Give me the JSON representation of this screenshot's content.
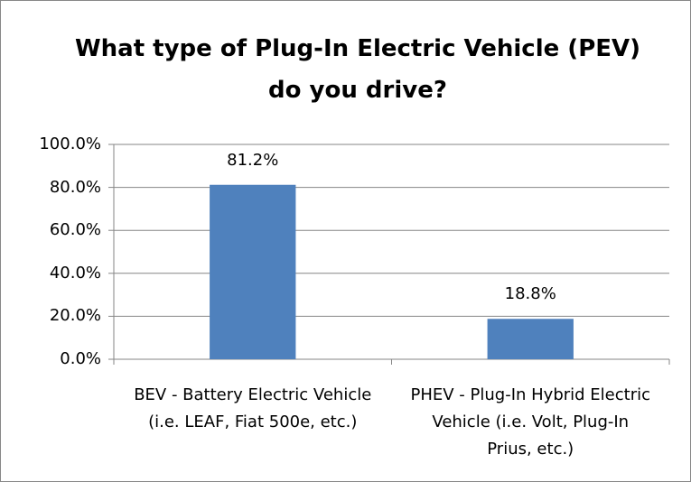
{
  "chart_data": {
    "type": "bar",
    "title": "What type of Plug-In Electric Vehicle (PEV) do you drive?",
    "categories": [
      "BEV - Battery Electric Vehicle (i.e. LEAF, Fiat 500e, etc.)",
      "PHEV - Plug-In Hybrid Electric Vehicle (i.e. Volt, Plug-In Prius, etc.)"
    ],
    "values": [
      81.2,
      18.8
    ],
    "value_labels": [
      "81.2%",
      "18.8%"
    ],
    "color": "#4f81bd",
    "ylim": [
      0,
      100
    ],
    "yticks": [
      {
        "value": 0,
        "label": "0.0%"
      },
      {
        "value": 20,
        "label": "20.0%"
      },
      {
        "value": 40,
        "label": "40.0%"
      },
      {
        "value": 60,
        "label": "60.0%"
      },
      {
        "value": 80,
        "label": "80.0%"
      },
      {
        "value": 100,
        "label": "100.0%"
      }
    ],
    "grid": true
  }
}
